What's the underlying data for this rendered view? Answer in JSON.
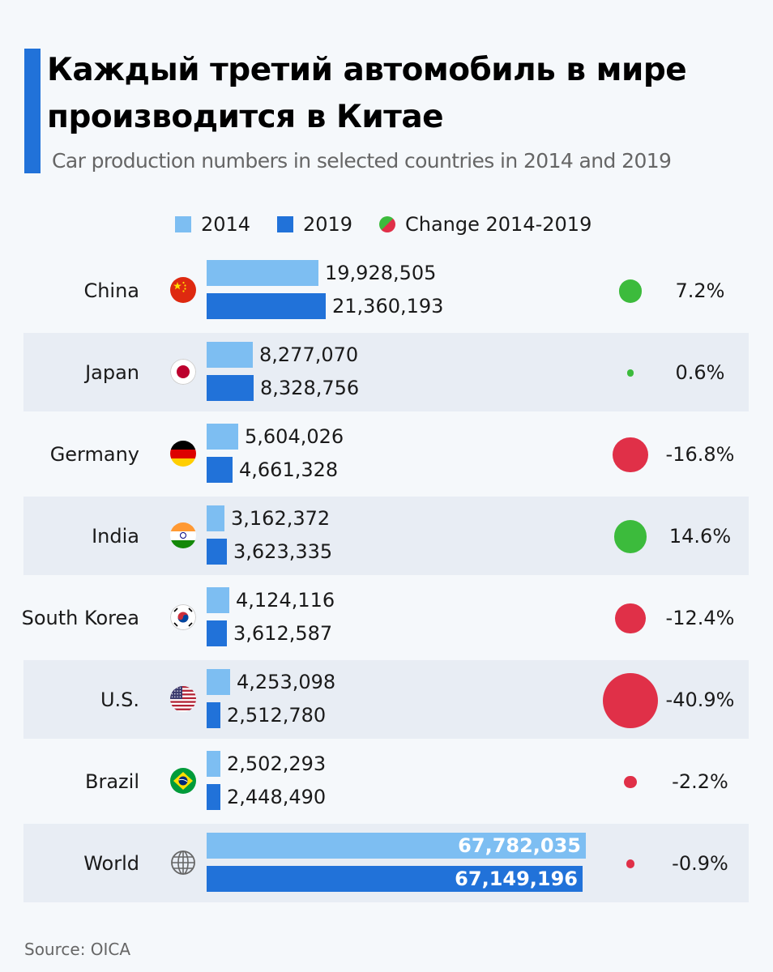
{
  "header": {
    "title": "Каждый третий автомобиль в мире производится в Китае",
    "subtitle": "Car production numbers in selected countries in 2014 and 2019"
  },
  "legend": {
    "label_2014": "2014",
    "label_2019": "2019",
    "label_change": "Change 2014-2019"
  },
  "colors": {
    "bar_2014": "#7dbef2",
    "bar_2019": "#2172d9",
    "positive": "#3cbb3c",
    "negative": "#e03048",
    "accent": "#2172d9"
  },
  "chart_data": {
    "type": "bar",
    "title": "Каждый третий автомобиль в мире производится в Китае",
    "subtitle": "Car production numbers in selected countries in 2014 and 2019",
    "categories": [
      "China",
      "Japan",
      "Germany",
      "India",
      "South Korea",
      "U.S.",
      "Brazil",
      "World"
    ],
    "series": [
      {
        "name": "2014",
        "values": [
          19928505,
          8277070,
          5604026,
          3162372,
          4124116,
          4253098,
          2502293,
          67782035
        ]
      },
      {
        "name": "2019",
        "values": [
          21360193,
          8328756,
          4661328,
          3623335,
          3612587,
          2512780,
          2448490,
          67149196
        ]
      }
    ],
    "value_labels": {
      "2014": [
        "19,928,505",
        "8,277,070",
        "5,604,026",
        "3,162,372",
        "4,124,116",
        "4,253,098",
        "2,502,293",
        "67,782,035"
      ],
      "2019": [
        "21,360,193",
        "8,328,756",
        "4,661,328",
        "3,623,335",
        "3,612,587",
        "2,512,780",
        "2,448,490",
        "67,149,196"
      ]
    },
    "change": {
      "name": "Change 2014-2019",
      "values": [
        7.2,
        0.6,
        -16.8,
        14.6,
        -12.4,
        -40.9,
        -2.2,
        -0.9
      ],
      "labels": [
        "7.2%",
        "0.6%",
        "-16.8%",
        "14.6%",
        "-12.4%",
        "-40.9%",
        "-2.2%",
        "-0.9%"
      ]
    },
    "flags": [
      "china-flag-icon",
      "japan-flag-icon",
      "germany-flag-icon",
      "india-flag-icon",
      "south-korea-flag-icon",
      "us-flag-icon",
      "brazil-flag-icon",
      "world-globe-icon"
    ],
    "xlabel": "",
    "ylabel": "",
    "legend_position": "top-center",
    "grid": false
  },
  "footer": {
    "source": "Source: OICA"
  }
}
